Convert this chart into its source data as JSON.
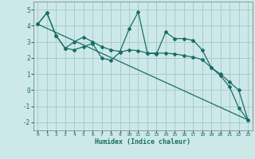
{
  "title": "",
  "xlabel": "Humidex (Indice chaleur)",
  "background_color": "#cce8e8",
  "grid_color": "#aacccc",
  "line_color": "#1a6e64",
  "xlim": [
    -0.5,
    23.5
  ],
  "ylim": [
    -2.5,
    5.5
  ],
  "yticks": [
    -2,
    -1,
    0,
    1,
    2,
    3,
    4,
    5
  ],
  "xticks": [
    0,
    1,
    2,
    3,
    4,
    5,
    6,
    7,
    8,
    9,
    10,
    11,
    12,
    13,
    14,
    15,
    16,
    17,
    18,
    19,
    20,
    21,
    22,
    23
  ],
  "line1_x": [
    0,
    1,
    2,
    3,
    4,
    5,
    6,
    7,
    8,
    9,
    10,
    11,
    12,
    13,
    14,
    15,
    16,
    17,
    18,
    19,
    20,
    21,
    22,
    23
  ],
  "line1_y": [
    4.1,
    4.8,
    3.4,
    2.6,
    3.0,
    3.3,
    3.0,
    2.7,
    2.5,
    2.4,
    3.8,
    4.85,
    2.3,
    2.25,
    3.6,
    3.2,
    3.2,
    3.1,
    2.5,
    1.4,
    0.9,
    0.2,
    -1.1,
    -1.85
  ],
  "line2_x": [
    0,
    1,
    2,
    3,
    4,
    5,
    6,
    7,
    8,
    9,
    10,
    11,
    12,
    13,
    14,
    15,
    16,
    17,
    18,
    19,
    20,
    21,
    22,
    23
  ],
  "line2_y": [
    4.1,
    4.8,
    3.4,
    2.6,
    2.5,
    2.7,
    2.9,
    2.0,
    1.85,
    2.35,
    2.5,
    2.45,
    2.3,
    2.3,
    2.3,
    2.25,
    2.15,
    2.05,
    1.9,
    1.4,
    1.0,
    0.5,
    0.0,
    -1.85
  ],
  "line3_x": [
    0,
    23
  ],
  "line3_y": [
    4.1,
    -1.85
  ]
}
